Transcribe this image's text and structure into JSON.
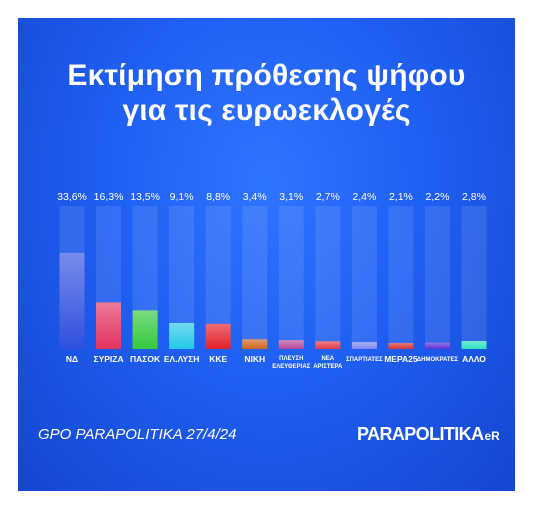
{
  "title_lines": [
    "Εκτίμηση πρόθεσης ψήφου",
    "για τις ευρωεκλογές"
  ],
  "source": "GPO PARAPOLITIKA 27/4/24",
  "logo": {
    "main": "PARAPOLITIKA",
    "suffix": "eR"
  },
  "chart_data": {
    "type": "bar",
    "categories": [
      "ΝΔ",
      "ΣΥΡΙΖΑ",
      "ΠΑΣΟΚ",
      "ΕΛ.ΛΥΣΗ",
      "ΚΚΕ",
      "ΝΙΚΗ",
      [
        "ΠΛΕΥΣΗ",
        "ΕΛΕΥΘΕΡΙΑΣ"
      ],
      [
        "ΝΕΑ",
        "ΑΡΙΣΤΕΡΑ"
      ],
      "ΣΠΑΡΤΙΑΤΕΣ",
      "ΜΕΡΑ25",
      "ΔΗΜΟΚΡΑΤΕΣ",
      "ΑΛΛΟ"
    ],
    "values": [
      33.6,
      16.3,
      13.5,
      9.1,
      8.8,
      3.4,
      3.1,
      2.7,
      2.4,
      2.1,
      2.2,
      2.8
    ],
    "value_labels": [
      "33,6%",
      "16,3%",
      "13,5%",
      "9,1%",
      "8,8%",
      "3,4%",
      "3,1%",
      "2,7%",
      "2,4%",
      "2,1%",
      "2,2%",
      "2,8%"
    ],
    "colors": [
      "#2f4fe0",
      "#e2335f",
      "#35c93e",
      "#25c7e8",
      "#e51f2a",
      "#d2641e",
      "#b54b9a",
      "#e23b4a",
      "#7e86ee",
      "#d53238",
      "#5b2fd6",
      "#2ee0bd"
    ],
    "ylim": [
      0,
      50
    ],
    "grid": false,
    "legend": "none"
  }
}
